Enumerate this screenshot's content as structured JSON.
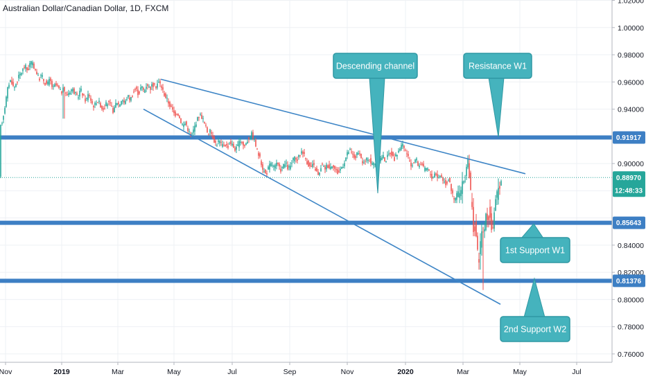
{
  "chart_data": {
    "type": "candlestick",
    "title": "Australian Dollar/Canadian Dollar, 1D, FXCM",
    "symbol": "AUDCAD",
    "timeframe": "1D",
    "source": "FXCM",
    "x_tick_labels": [
      "Nov",
      "2019",
      "Mar",
      "May",
      "Jul",
      "Sep",
      "Nov",
      "2020",
      "Mar",
      "May",
      "Jul"
    ],
    "y_tick_labels": [
      "1.02000",
      "1.00000",
      "0.98000",
      "0.96000",
      "0.94000",
      "0.90000",
      "0.84000",
      "0.82000",
      "0.80000",
      "0.78000",
      "0.76000"
    ],
    "ylim": [
      0.7575,
      1.0225
    ],
    "grid": true,
    "current_price": 0.8897,
    "countdown": "12:48:33",
    "horizontal_levels": [
      {
        "name": "Resistance W1",
        "value": 0.91917,
        "label": "0.91917"
      },
      {
        "name": "1st Support W1",
        "value": 0.85643,
        "label": "0.85643"
      },
      {
        "name": "2nd Support W2",
        "value": 0.81376,
        "label": "0.81376"
      }
    ],
    "annotations": [
      {
        "text": "Descending channel"
      },
      {
        "text": "Resistance W1"
      },
      {
        "text": "1st Support W1"
      },
      {
        "text": "2nd Support W2"
      }
    ],
    "price_path": [
      [
        0,
        0.925
      ],
      [
        4,
        0.933
      ],
      [
        8,
        0.945
      ],
      [
        12,
        0.958
      ],
      [
        16,
        0.962
      ],
      [
        20,
        0.955
      ],
      [
        24,
        0.96
      ],
      [
        28,
        0.965
      ],
      [
        32,
        0.968
      ],
      [
        36,
        0.972
      ],
      [
        40,
        0.968
      ],
      [
        44,
        0.975
      ],
      [
        48,
        0.972
      ],
      [
        52,
        0.968
      ],
      [
        56,
        0.962
      ],
      [
        60,
        0.965
      ],
      [
        64,
        0.96
      ],
      [
        68,
        0.958
      ],
      [
        72,
        0.962
      ],
      [
        76,
        0.955
      ],
      [
        80,
        0.958
      ],
      [
        84,
        0.956
      ],
      [
        88,
        0.952
      ],
      [
        92,
        0.955
      ],
      [
        96,
        0.95
      ],
      [
        100,
        0.953
      ],
      [
        104,
        0.955
      ],
      [
        108,
        0.952
      ],
      [
        112,
        0.948
      ],
      [
        116,
        0.955
      ],
      [
        120,
        0.95
      ],
      [
        124,
        0.946
      ],
      [
        128,
        0.952
      ],
      [
        132,
        0.945
      ],
      [
        136,
        0.942
      ],
      [
        140,
        0.947
      ],
      [
        144,
        0.944
      ],
      [
        148,
        0.94
      ],
      [
        152,
        0.943
      ],
      [
        156,
        0.945
      ],
      [
        160,
        0.942
      ],
      [
        164,
        0.938
      ],
      [
        168,
        0.946
      ],
      [
        172,
        0.943
      ],
      [
        176,
        0.948
      ],
      [
        180,
        0.944
      ],
      [
        184,
        0.95
      ],
      [
        188,
        0.947
      ],
      [
        192,
        0.952
      ],
      [
        196,
        0.955
      ],
      [
        200,
        0.951
      ],
      [
        204,
        0.957
      ],
      [
        208,
        0.953
      ],
      [
        212,
        0.959
      ],
      [
        216,
        0.955
      ],
      [
        220,
        0.958
      ],
      [
        224,
        0.956
      ],
      [
        228,
        0.96
      ],
      [
        232,
        0.958
      ],
      [
        236,
        0.952
      ],
      [
        240,
        0.948
      ],
      [
        244,
        0.944
      ],
      [
        248,
        0.94
      ],
      [
        252,
        0.936
      ],
      [
        256,
        0.938
      ],
      [
        260,
        0.932
      ],
      [
        264,
        0.928
      ],
      [
        268,
        0.93
      ],
      [
        272,
        0.924
      ],
      [
        276,
        0.92
      ],
      [
        280,
        0.926
      ],
      [
        284,
        0.932
      ],
      [
        288,
        0.936
      ],
      [
        292,
        0.934
      ],
      [
        296,
        0.928
      ],
      [
        300,
        0.922
      ],
      [
        304,
        0.924
      ],
      [
        308,
        0.918
      ],
      [
        312,
        0.914
      ],
      [
        316,
        0.917
      ],
      [
        320,
        0.913
      ],
      [
        324,
        0.915
      ],
      [
        328,
        0.912
      ],
      [
        332,
        0.916
      ],
      [
        336,
        0.913
      ],
      [
        340,
        0.91
      ],
      [
        344,
        0.914
      ],
      [
        348,
        0.918
      ],
      [
        352,
        0.912
      ],
      [
        356,
        0.916
      ],
      [
        360,
        0.92
      ],
      [
        364,
        0.922
      ],
      [
        368,
        0.915
      ],
      [
        372,
        0.908
      ],
      [
        376,
        0.902
      ],
      [
        380,
        0.895
      ],
      [
        384,
        0.892
      ],
      [
        388,
        0.898
      ],
      [
        392,
        0.9
      ],
      [
        396,
        0.897
      ],
      [
        400,
        0.9
      ],
      [
        404,
        0.895
      ],
      [
        408,
        0.898
      ],
      [
        412,
        0.9
      ],
      [
        416,
        0.896
      ],
      [
        420,
        0.899
      ],
      [
        424,
        0.904
      ],
      [
        428,
        0.902
      ],
      [
        432,
        0.906
      ],
      [
        436,
        0.91
      ],
      [
        440,
        0.905
      ],
      [
        444,
        0.9
      ],
      [
        448,
        0.897
      ],
      [
        452,
        0.899
      ],
      [
        456,
        0.895
      ],
      [
        460,
        0.89
      ],
      [
        464,
        0.9
      ],
      [
        468,
        0.896
      ],
      [
        472,
        0.899
      ],
      [
        476,
        0.897
      ],
      [
        480,
        0.9
      ],
      [
        484,
        0.895
      ],
      [
        488,
        0.893
      ],
      [
        492,
        0.897
      ],
      [
        496,
        0.9
      ],
      [
        500,
        0.906
      ],
      [
        504,
        0.91
      ],
      [
        508,
        0.907
      ],
      [
        512,
        0.904
      ],
      [
        516,
        0.908
      ],
      [
        520,
        0.905
      ],
      [
        524,
        0.9
      ],
      [
        528,
        0.902
      ],
      [
        532,
        0.905
      ],
      [
        536,
        0.899
      ],
      [
        540,
        0.901
      ],
      [
        544,
        0.9
      ],
      [
        548,
        0.903
      ],
      [
        552,
        0.906
      ],
      [
        556,
        0.902
      ],
      [
        560,
        0.906
      ],
      [
        564,
        0.909
      ],
      [
        568,
        0.903
      ],
      [
        572,
        0.906
      ],
      [
        576,
        0.911
      ],
      [
        580,
        0.914
      ],
      [
        584,
        0.91
      ],
      [
        588,
        0.907
      ],
      [
        592,
        0.898
      ],
      [
        596,
        0.9
      ],
      [
        600,
        0.904
      ],
      [
        604,
        0.898
      ],
      [
        608,
        0.901
      ],
      [
        612,
        0.895
      ],
      [
        616,
        0.897
      ],
      [
        620,
        0.893
      ],
      [
        624,
        0.889
      ],
      [
        628,
        0.894
      ],
      [
        632,
        0.889
      ],
      [
        636,
        0.892
      ],
      [
        640,
        0.887
      ],
      [
        644,
        0.885
      ],
      [
        648,
        0.89
      ],
      [
        652,
        0.878
      ],
      [
        656,
        0.872
      ],
      [
        660,
        0.88
      ],
      [
        664,
        0.876
      ],
      [
        668,
        0.885
      ],
      [
        672,
        0.893
      ],
      [
        674,
        0.903
      ],
      [
        676,
        0.896
      ],
      [
        678,
        0.886
      ],
      [
        680,
        0.872
      ],
      [
        682,
        0.86
      ],
      [
        684,
        0.848
      ],
      [
        686,
        0.856
      ],
      [
        688,
        0.838
      ],
      [
        690,
        0.828
      ],
      [
        692,
        0.835
      ],
      [
        694,
        0.845
      ],
      [
        696,
        0.852
      ],
      [
        698,
        0.848
      ],
      [
        700,
        0.856
      ],
      [
        702,
        0.862
      ],
      [
        704,
        0.858
      ],
      [
        706,
        0.866
      ],
      [
        708,
        0.856
      ],
      [
        710,
        0.851
      ],
      [
        712,
        0.858
      ],
      [
        714,
        0.866
      ],
      [
        716,
        0.874
      ],
      [
        718,
        0.878
      ],
      [
        720,
        0.885
      ],
      [
        722,
        0.887
      ],
      [
        724,
        0.889
      ]
    ],
    "wick_extremes": [
      {
        "x": 92,
        "low": 0.933
      },
      {
        "x": 545,
        "high": 0.922,
        "low": 0.879
      },
      {
        "x": 675,
        "high": 0.906
      },
      {
        "x": 692,
        "low": 0.822
      },
      {
        "x": 697,
        "low": 0.807
      }
    ],
    "channel_lines": [
      {
        "name": "upper",
        "from": [
          232,
          0.962
        ],
        "to": [
          758,
          0.8925
        ]
      },
      {
        "name": "lower",
        "from": [
          207,
          0.94
        ],
        "to": [
          722,
          0.7965
        ]
      }
    ],
    "colors": {
      "up": "#26a69a",
      "down": "#ef5350",
      "channel": "#3d85c6",
      "level": "#3d7fc4",
      "callout": "#45b3bd",
      "callout_border": "#2f98a3",
      "grid": "#eef0f4",
      "current_price": "#26a69a"
    }
  }
}
